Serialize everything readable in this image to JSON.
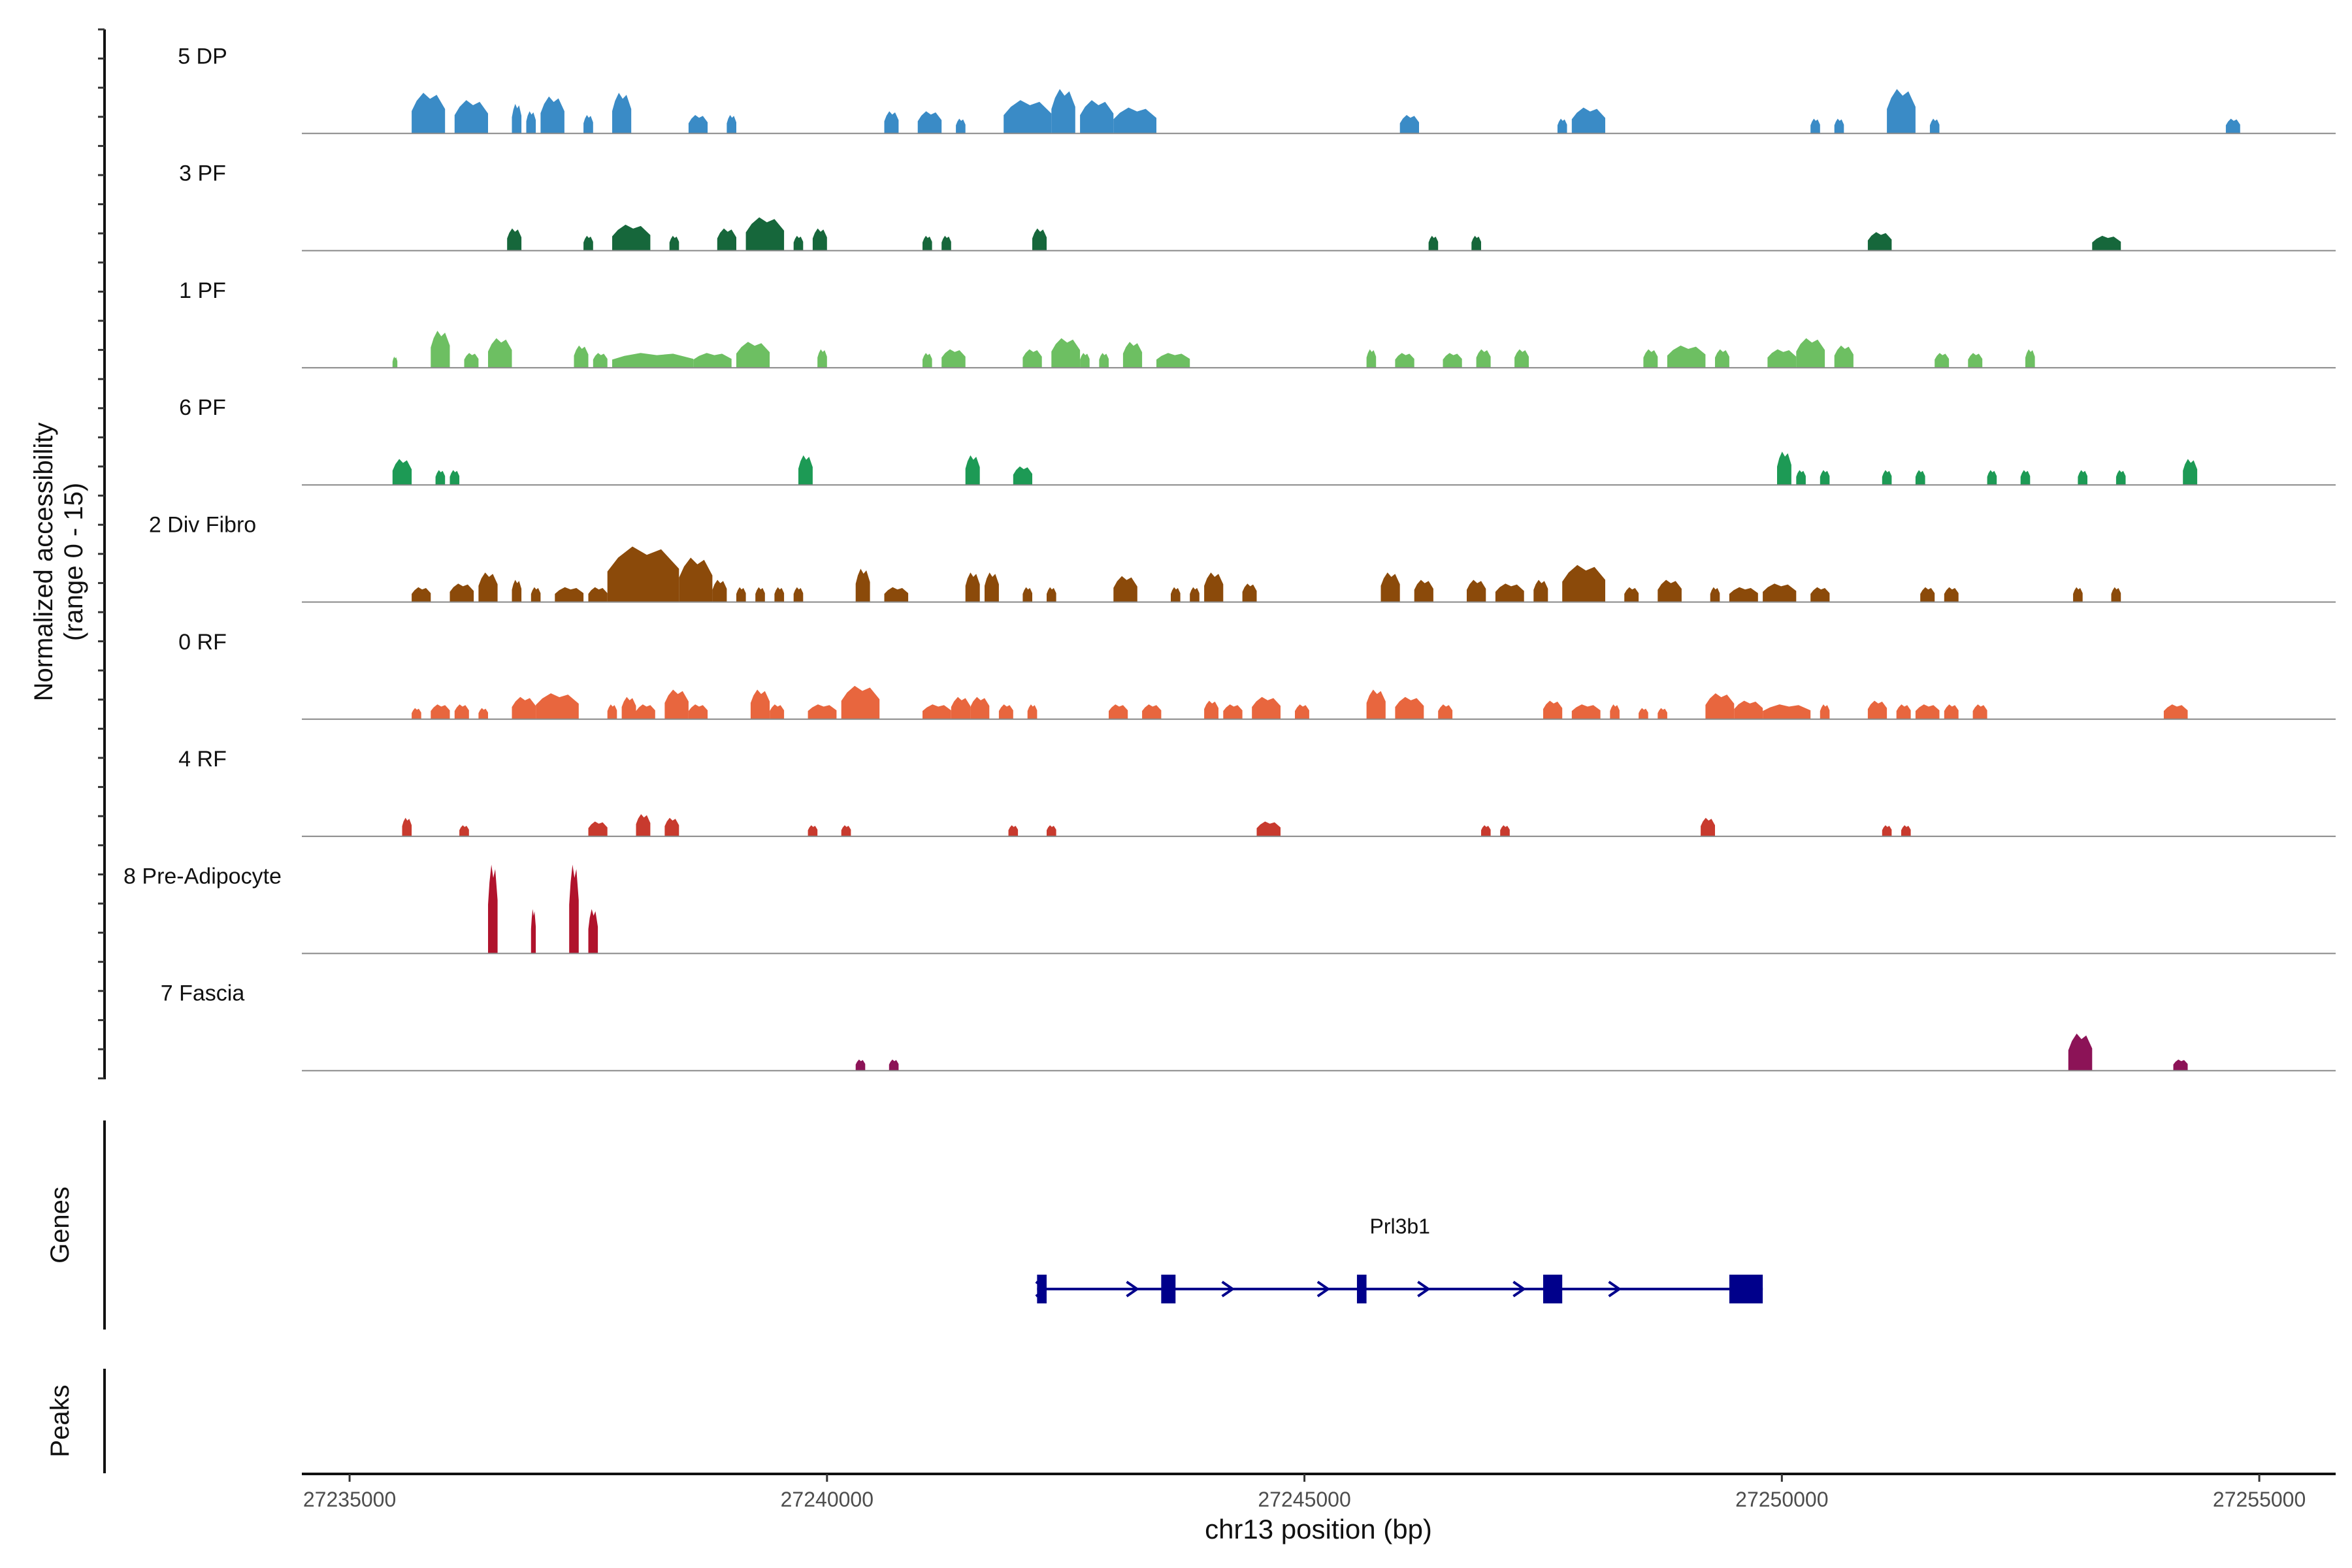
{
  "chart_data": {
    "type": "area",
    "title": "",
    "ylabel_line1": "Normalized accessibility",
    "ylabel_line2": "(range 0 - 15)",
    "y_range": [
      0,
      15
    ],
    "xlabel": "chr13 position (bp)",
    "xlim": [
      27234500,
      27255800
    ],
    "x_ticks": [
      27235000,
      27240000,
      27245000,
      27250000,
      27255000
    ],
    "x_tick_labels": [
      "27235000",
      "27240000",
      "27245000",
      "27250000",
      "27255000"
    ],
    "tracks": [
      {
        "name": "5 DP",
        "color": "#3a8bc6",
        "peaks": [
          [
            27235650,
            27236000,
            5.5
          ],
          [
            27236100,
            27236450,
            4.5
          ],
          [
            27236700,
            27236800,
            4
          ],
          [
            27236850,
            27236950,
            3
          ],
          [
            27237000,
            27237250,
            5
          ],
          [
            27237450,
            27237550,
            2.5
          ],
          [
            27237750,
            27237950,
            5.5
          ],
          [
            27238550,
            27238750,
            2.5
          ],
          [
            27238950,
            27239050,
            2.5
          ],
          [
            27240600,
            27240750,
            3
          ],
          [
            27240950,
            27241200,
            3
          ],
          [
            27241350,
            27241450,
            2
          ],
          [
            27241850,
            27242350,
            4.5
          ],
          [
            27242350,
            27242600,
            6
          ],
          [
            27242650,
            27243000,
            4.5
          ],
          [
            27243000,
            27243450,
            3.5
          ],
          [
            27246000,
            27246200,
            2.5
          ],
          [
            27247650,
            27247750,
            2
          ],
          [
            27247800,
            27248150,
            3.5
          ],
          [
            27250300,
            27250400,
            2
          ],
          [
            27250550,
            27250650,
            2
          ],
          [
            27251100,
            27251400,
            6
          ],
          [
            27251550,
            27251650,
            2
          ],
          [
            27254650,
            27254800,
            2
          ]
        ]
      },
      {
        "name": "3 PF",
        "color": "#16673b",
        "peaks": [
          [
            27236650,
            27236800,
            3
          ],
          [
            27237450,
            27237550,
            2
          ],
          [
            27237750,
            27238150,
            3.5
          ],
          [
            27238350,
            27238450,
            2
          ],
          [
            27238850,
            27239050,
            3
          ],
          [
            27239150,
            27239550,
            4.5
          ],
          [
            27239650,
            27239750,
            2
          ],
          [
            27239850,
            27240000,
            3
          ],
          [
            27241000,
            27241100,
            2
          ],
          [
            27241200,
            27241300,
            2
          ],
          [
            27242150,
            27242300,
            3
          ],
          [
            27246300,
            27246400,
            2
          ],
          [
            27246750,
            27246850,
            2
          ],
          [
            27250900,
            27251150,
            2.5
          ],
          [
            27253250,
            27253550,
            2
          ]
        ]
      },
      {
        "name": "1 PF",
        "color": "#6dbf62",
        "peaks": [
          [
            27235450,
            27235500,
            1.5
          ],
          [
            27235850,
            27236050,
            5
          ],
          [
            27236200,
            27236350,
            2
          ],
          [
            27236450,
            27236700,
            4
          ],
          [
            27237350,
            27237500,
            3
          ],
          [
            27237550,
            27237700,
            2
          ],
          [
            27237750,
            27238600,
            2
          ],
          [
            27238600,
            27239000,
            2
          ],
          [
            27239050,
            27239400,
            3.5
          ],
          [
            27239900,
            27240000,
            2.5
          ],
          [
            27241000,
            27241100,
            2
          ],
          [
            27241200,
            27241450,
            2.5
          ],
          [
            27242050,
            27242250,
            2.5
          ],
          [
            27242350,
            27242650,
            4
          ],
          [
            27242650,
            27242750,
            2
          ],
          [
            27242850,
            27242950,
            2
          ],
          [
            27243100,
            27243300,
            3.5
          ],
          [
            27243450,
            27243800,
            2
          ],
          [
            27245650,
            27245750,
            2.5
          ],
          [
            27245950,
            27246150,
            2
          ],
          [
            27246450,
            27246650,
            2
          ],
          [
            27246800,
            27246950,
            2.5
          ],
          [
            27247200,
            27247350,
            2.5
          ],
          [
            27248550,
            27248700,
            2.5
          ],
          [
            27248800,
            27249200,
            3
          ],
          [
            27249300,
            27249450,
            2.5
          ],
          [
            27249850,
            27250150,
            2.5
          ],
          [
            27250150,
            27250450,
            4
          ],
          [
            27250550,
            27250750,
            3
          ],
          [
            27251600,
            27251750,
            2
          ],
          [
            27251950,
            27252100,
            2
          ],
          [
            27252550,
            27252650,
            2.5
          ]
        ]
      },
      {
        "name": "6 PF",
        "color": "#1d9a55",
        "peaks": [
          [
            27235450,
            27235650,
            3.5
          ],
          [
            27235900,
            27236000,
            2
          ],
          [
            27236050,
            27236150,
            2
          ],
          [
            27239700,
            27239850,
            4
          ],
          [
            27241450,
            27241600,
            4
          ],
          [
            27241950,
            27242150,
            2.5
          ],
          [
            27249950,
            27250100,
            4.5
          ],
          [
            27250150,
            27250250,
            2
          ],
          [
            27250400,
            27250500,
            2
          ],
          [
            27251050,
            27251150,
            2
          ],
          [
            27251400,
            27251500,
            2
          ],
          [
            27252150,
            27252250,
            2
          ],
          [
            27252500,
            27252600,
            2
          ],
          [
            27253100,
            27253200,
            2
          ],
          [
            27253500,
            27253600,
            2
          ],
          [
            27254200,
            27254350,
            3.5
          ]
        ]
      },
      {
        "name": "2 Div Fibro",
        "color": "#8b4a0a",
        "peaks": [
          [
            27235650,
            27235850,
            2
          ],
          [
            27236050,
            27236300,
            2.5
          ],
          [
            27236350,
            27236550,
            4
          ],
          [
            27236700,
            27236800,
            3
          ],
          [
            27236900,
            27237000,
            2
          ],
          [
            27237150,
            27237450,
            2
          ],
          [
            27237500,
            27237700,
            2
          ],
          [
            27237700,
            27238450,
            7.5
          ],
          [
            27238450,
            27238800,
            6
          ],
          [
            27238800,
            27238950,
            3
          ],
          [
            27239050,
            27239150,
            2
          ],
          [
            27239250,
            27239350,
            2
          ],
          [
            27239450,
            27239550,
            2
          ],
          [
            27239650,
            27239750,
            2
          ],
          [
            27240300,
            27240450,
            4.5
          ],
          [
            27240600,
            27240850,
            2
          ],
          [
            27241450,
            27241600,
            4
          ],
          [
            27241650,
            27241800,
            4
          ],
          [
            27242050,
            27242150,
            2
          ],
          [
            27242300,
            27242400,
            2
          ],
          [
            27243000,
            27243250,
            3.5
          ],
          [
            27243600,
            27243700,
            2
          ],
          [
            27243800,
            27243900,
            2
          ],
          [
            27243950,
            27244150,
            4
          ],
          [
            27244350,
            27244500,
            2.5
          ],
          [
            27245800,
            27246000,
            4
          ],
          [
            27246150,
            27246350,
            3
          ],
          [
            27246700,
            27246900,
            3
          ],
          [
            27247000,
            27247300,
            2.5
          ],
          [
            27247400,
            27247550,
            3
          ],
          [
            27247700,
            27248150,
            5
          ],
          [
            27248350,
            27248500,
            2
          ],
          [
            27248700,
            27248950,
            3
          ],
          [
            27249250,
            27249350,
            2
          ],
          [
            27249450,
            27249750,
            2
          ],
          [
            27249800,
            27250150,
            2.5
          ],
          [
            27250300,
            27250500,
            2
          ],
          [
            27251450,
            27251600,
            2
          ],
          [
            27251700,
            27251850,
            2
          ],
          [
            27253050,
            27253150,
            2
          ],
          [
            27253450,
            27253550,
            2
          ]
        ]
      },
      {
        "name": "0 RF",
        "color": "#e8663e",
        "peaks": [
          [
            27235650,
            27235750,
            1.5
          ],
          [
            27235850,
            27236050,
            2
          ],
          [
            27236100,
            27236250,
            2
          ],
          [
            27236350,
            27236450,
            1.5
          ],
          [
            27236700,
            27236950,
            3
          ],
          [
            27236950,
            27237400,
            3.5
          ],
          [
            27237700,
            27237800,
            2
          ],
          [
            27237850,
            27238000,
            3
          ],
          [
            27238000,
            27238200,
            2
          ],
          [
            27238300,
            27238550,
            4
          ],
          [
            27238550,
            27238750,
            2
          ],
          [
            27239200,
            27239400,
            4
          ],
          [
            27239400,
            27239550,
            2
          ],
          [
            27239800,
            27240100,
            2
          ],
          [
            27240150,
            27240550,
            4.5
          ],
          [
            27241000,
            27241300,
            2
          ],
          [
            27241300,
            27241500,
            3
          ],
          [
            27241500,
            27241700,
            3
          ],
          [
            27241800,
            27241950,
            2
          ],
          [
            27242100,
            27242200,
            2
          ],
          [
            27242950,
            27243150,
            2
          ],
          [
            27243300,
            27243500,
            2
          ],
          [
            27243950,
            27244100,
            2.5
          ],
          [
            27244150,
            27244350,
            2
          ],
          [
            27244450,
            27244750,
            3
          ],
          [
            27244900,
            27245050,
            2
          ],
          [
            27245650,
            27245850,
            4
          ],
          [
            27245950,
            27246250,
            3
          ],
          [
            27246400,
            27246550,
            2
          ],
          [
            27247500,
            27247700,
            2.5
          ],
          [
            27247800,
            27248100,
            2
          ],
          [
            27248200,
            27248300,
            2
          ],
          [
            27248500,
            27248600,
            1.5
          ],
          [
            27248700,
            27248800,
            1.5
          ],
          [
            27249200,
            27249500,
            3.5
          ],
          [
            27249500,
            27249800,
            2.5
          ],
          [
            27249800,
            27250300,
            2
          ],
          [
            27250400,
            27250500,
            2
          ],
          [
            27250900,
            27251100,
            2.5
          ],
          [
            27251200,
            27251350,
            2
          ],
          [
            27251400,
            27251650,
            2
          ],
          [
            27251700,
            27251850,
            2
          ],
          [
            27252000,
            27252150,
            2
          ],
          [
            27254000,
            27254250,
            2
          ]
        ]
      },
      {
        "name": "4 RF",
        "color": "#c83a2e",
        "peaks": [
          [
            27235550,
            27235650,
            2.5
          ],
          [
            27236150,
            27236250,
            1.5
          ],
          [
            27237500,
            27237700,
            2
          ],
          [
            27238000,
            27238150,
            3
          ],
          [
            27238300,
            27238450,
            2.5
          ],
          [
            27239800,
            27239900,
            1.5
          ],
          [
            27240150,
            27240250,
            1.5
          ],
          [
            27241900,
            27242000,
            1.5
          ],
          [
            27242300,
            27242400,
            1.5
          ],
          [
            27244500,
            27244750,
            2
          ],
          [
            27246850,
            27246950,
            1.5
          ],
          [
            27247050,
            27247150,
            1.5
          ],
          [
            27249150,
            27249300,
            2.5
          ],
          [
            27251050,
            27251150,
            1.5
          ],
          [
            27251250,
            27251350,
            1.5
          ]
        ]
      },
      {
        "name": "8 Pre-Adipocyte",
        "color": "#b0132c",
        "peaks": [
          [
            27236450,
            27236550,
            12
          ],
          [
            27236900,
            27236950,
            6
          ],
          [
            27237300,
            27237400,
            12
          ],
          [
            27237500,
            27237600,
            6
          ]
        ]
      },
      {
        "name": "7 Fascia",
        "color": "#8c1357",
        "peaks": [
          [
            27240300,
            27240400,
            1.5
          ],
          [
            27240650,
            27240750,
            1.5
          ],
          [
            27253000,
            27253250,
            5
          ],
          [
            27254100,
            27254250,
            1.5
          ]
        ]
      }
    ],
    "genes_label": "Genes",
    "peaks_label": "Peaks",
    "gene": {
      "name": "Prl3b1",
      "strand": "+",
      "start": 27242200,
      "end": 27249800,
      "exons": [
        [
          27242200,
          27242300
        ],
        [
          27243500,
          27243650
        ],
        [
          27245550,
          27245650
        ],
        [
          27247500,
          27247700
        ],
        [
          27249450,
          27249800
        ]
      ],
      "arrows_at": [
        27242250,
        27243200,
        27244200,
        27245200,
        27246250,
        27247250,
        27248250
      ],
      "color": "#00008b"
    }
  }
}
